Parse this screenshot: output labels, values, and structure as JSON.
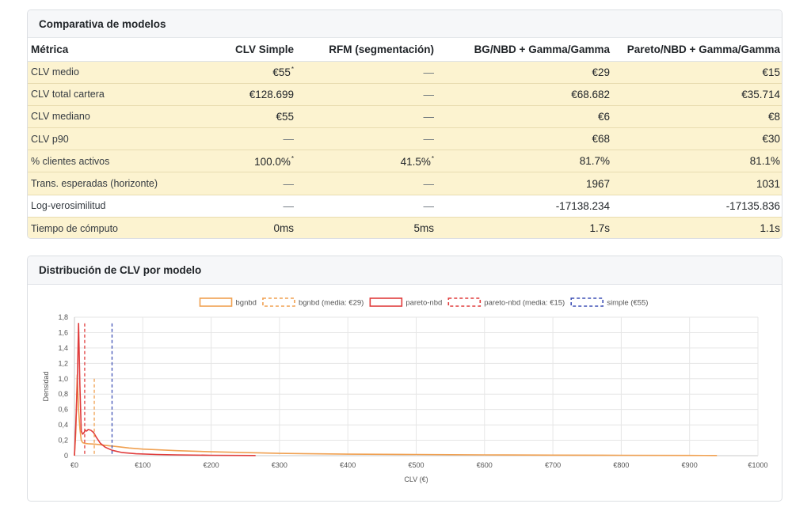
{
  "table_card": {
    "title": "Comparativa de modelos",
    "headers": [
      "Métrica",
      "CLV Simple",
      "RFM (segmentación)",
      "BG/NBD + Gamma/Gamma",
      "Pareto/NBD + Gamma/Gamma"
    ],
    "rows": [
      {
        "metric": "CLV medio",
        "simple": "€55",
        "simple_mark": "*",
        "rfm": "—",
        "rfm_mark": "",
        "bgnbd": "€29",
        "pareto": "€15",
        "highlight": true
      },
      {
        "metric": "CLV total cartera",
        "simple": "€128.699",
        "simple_mark": "",
        "rfm": "—",
        "rfm_mark": "",
        "bgnbd": "€68.682",
        "pareto": "€35.714",
        "highlight": true
      },
      {
        "metric": "CLV mediano",
        "simple": "€55",
        "simple_mark": "",
        "rfm": "—",
        "rfm_mark": "",
        "bgnbd": "€6",
        "pareto": "€8",
        "highlight": true
      },
      {
        "metric": "CLV p90",
        "simple": "—",
        "simple_mark": "",
        "rfm": "—",
        "rfm_mark": "",
        "bgnbd": "€68",
        "pareto": "€30",
        "highlight": true
      },
      {
        "metric": "% clientes activos",
        "simple": "100.0%",
        "simple_mark": "*",
        "rfm": "41.5%",
        "rfm_mark": "*",
        "bgnbd": "81.7%",
        "pareto": "81.1%",
        "highlight": true
      },
      {
        "metric": "Trans. esperadas (horizonte)",
        "simple": "—",
        "simple_mark": "",
        "rfm": "—",
        "rfm_mark": "",
        "bgnbd": "1967",
        "pareto": "1031",
        "highlight": true
      },
      {
        "metric": "Log-verosimilitud",
        "simple": "—",
        "simple_mark": "",
        "rfm": "—",
        "rfm_mark": "",
        "bgnbd": "-17138.234",
        "pareto": "-17135.836",
        "highlight": false
      },
      {
        "metric": "Tiempo de cómputo",
        "simple": "0ms",
        "simple_mark": "",
        "rfm": "5ms",
        "rfm_mark": "",
        "bgnbd": "1.7s",
        "pareto": "1.1s",
        "highlight": true
      }
    ],
    "colors": {
      "highlight_row": "#fcf3d0",
      "plain_row": "#ffffff"
    }
  },
  "chart_card": {
    "title": "Distribución de CLV por modelo"
  },
  "chart_data": {
    "type": "line",
    "xlabel": "CLV (€)",
    "ylabel": "Densidad",
    "xlim": [
      0,
      1000
    ],
    "ylim": [
      0,
      1.8
    ],
    "x_ticks": [
      "€0",
      "€100",
      "€200",
      "€300",
      "€400",
      "€500",
      "€600",
      "€700",
      "€800",
      "€900",
      "€1000"
    ],
    "y_ticks": [
      "0",
      "0,2",
      "0,4",
      "0,6",
      "0,8",
      "1,0",
      "1,2",
      "1,4",
      "1,6",
      "1,8"
    ],
    "grid": true,
    "legend_position": "top",
    "legend": [
      {
        "label": "bgnbd",
        "color": "#f0a050",
        "style": "line"
      },
      {
        "label": "bgnbd (media: €29)",
        "color": "#f0a050",
        "style": "dashed"
      },
      {
        "label": "pareto-nbd",
        "color": "#e03c3c",
        "style": "line"
      },
      {
        "label": "pareto-nbd (media: €15)",
        "color": "#e03c3c",
        "style": "dashed"
      },
      {
        "label": "simple (€55)",
        "color": "#3f51b5",
        "style": "dashed"
      }
    ],
    "series": [
      {
        "name": "bgnbd",
        "color": "#f0a050",
        "points": [
          [
            0,
            0.0
          ],
          [
            2,
            0.3
          ],
          [
            4,
            1.05
          ],
          [
            6,
            0.6
          ],
          [
            8,
            0.35
          ],
          [
            10,
            0.2
          ],
          [
            12,
            0.17
          ],
          [
            15,
            0.16
          ],
          [
            20,
            0.155
          ],
          [
            30,
            0.15
          ],
          [
            40,
            0.14
          ],
          [
            50,
            0.13
          ],
          [
            60,
            0.12
          ],
          [
            80,
            0.1
          ],
          [
            100,
            0.085
          ],
          [
            150,
            0.065
          ],
          [
            200,
            0.05
          ],
          [
            300,
            0.03
          ],
          [
            400,
            0.02
          ],
          [
            500,
            0.015
          ],
          [
            600,
            0.01
          ],
          [
            700,
            0.007
          ],
          [
            800,
            0.005
          ],
          [
            900,
            0.003
          ],
          [
            940,
            0.002
          ]
        ]
      },
      {
        "name": "pareto-nbd",
        "color": "#e03c3c",
        "points": [
          [
            0,
            0.0
          ],
          [
            2,
            0.4
          ],
          [
            4,
            0.9
          ],
          [
            6,
            1.72
          ],
          [
            8,
            0.9
          ],
          [
            10,
            0.32
          ],
          [
            12,
            0.28
          ],
          [
            14,
            0.3
          ],
          [
            16,
            0.33
          ],
          [
            18,
            0.32
          ],
          [
            20,
            0.34
          ],
          [
            24,
            0.33
          ],
          [
            28,
            0.3
          ],
          [
            32,
            0.24
          ],
          [
            38,
            0.16
          ],
          [
            45,
            0.11
          ],
          [
            55,
            0.07
          ],
          [
            70,
            0.04
          ],
          [
            90,
            0.025
          ],
          [
            120,
            0.015
          ],
          [
            150,
            0.01
          ],
          [
            200,
            0.005
          ],
          [
            265,
            0.002
          ]
        ]
      }
    ],
    "mean_lines": [
      {
        "name": "bgnbd (media: €29)",
        "x": 29,
        "y_top": 1.0,
        "color": "#f0a050"
      },
      {
        "name": "pareto-nbd (media: €15)",
        "x": 15,
        "y_top": 1.72,
        "color": "#e03c3c"
      },
      {
        "name": "simple (€55)",
        "x": 55,
        "y_top": 1.72,
        "color": "#3f51b5"
      }
    ]
  }
}
